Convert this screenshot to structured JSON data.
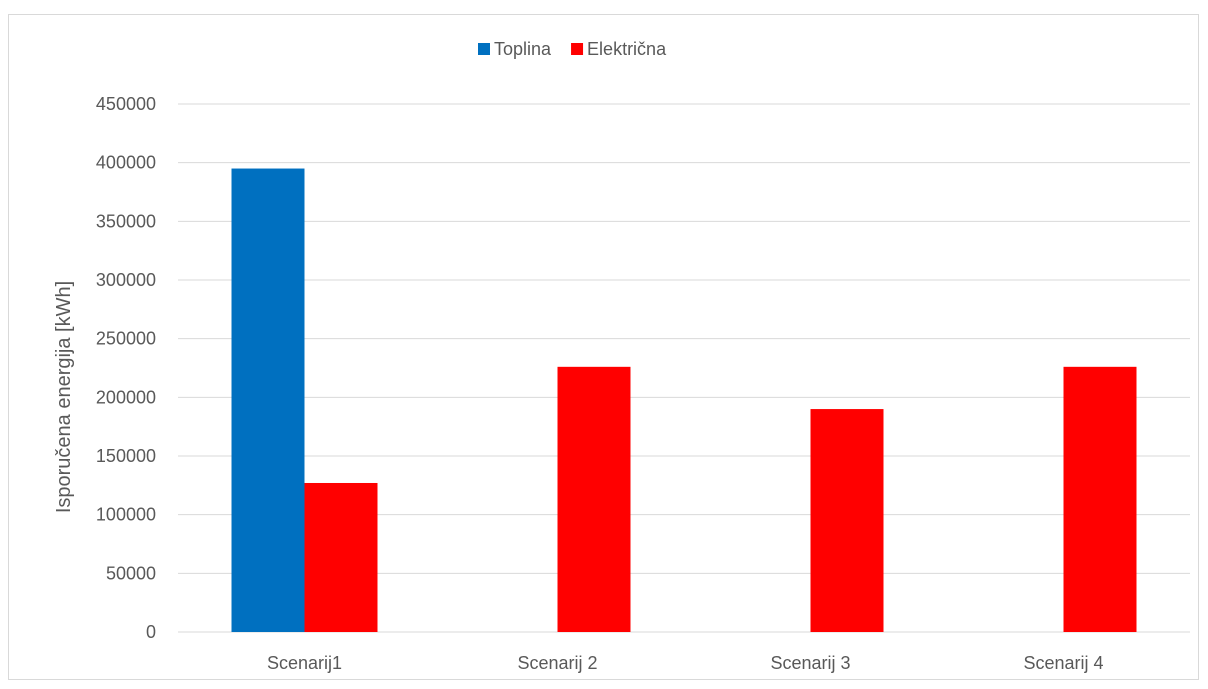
{
  "chart_data": {
    "type": "bar",
    "title": "",
    "xlabel": "",
    "ylabel": "Isporučena energija [kWh]",
    "categories": [
      "Scenarij1",
      "Scenarij 2",
      "Scenarij 3",
      "Scenarij 4"
    ],
    "series": [
      {
        "name": "Toplina",
        "color": "#0070c0",
        "values": [
          395000,
          0,
          0,
          0
        ]
      },
      {
        "name": "Električna",
        "color": "#ff0000",
        "values": [
          127000,
          226000,
          190000,
          226000
        ]
      }
    ],
    "ylim": [
      0,
      450000
    ],
    "yticks": [
      "0",
      "50000",
      "100000",
      "150000",
      "200000",
      "250000",
      "300000",
      "350000",
      "400000",
      "450000"
    ],
    "grid": true,
    "legend_position": "top-center"
  }
}
